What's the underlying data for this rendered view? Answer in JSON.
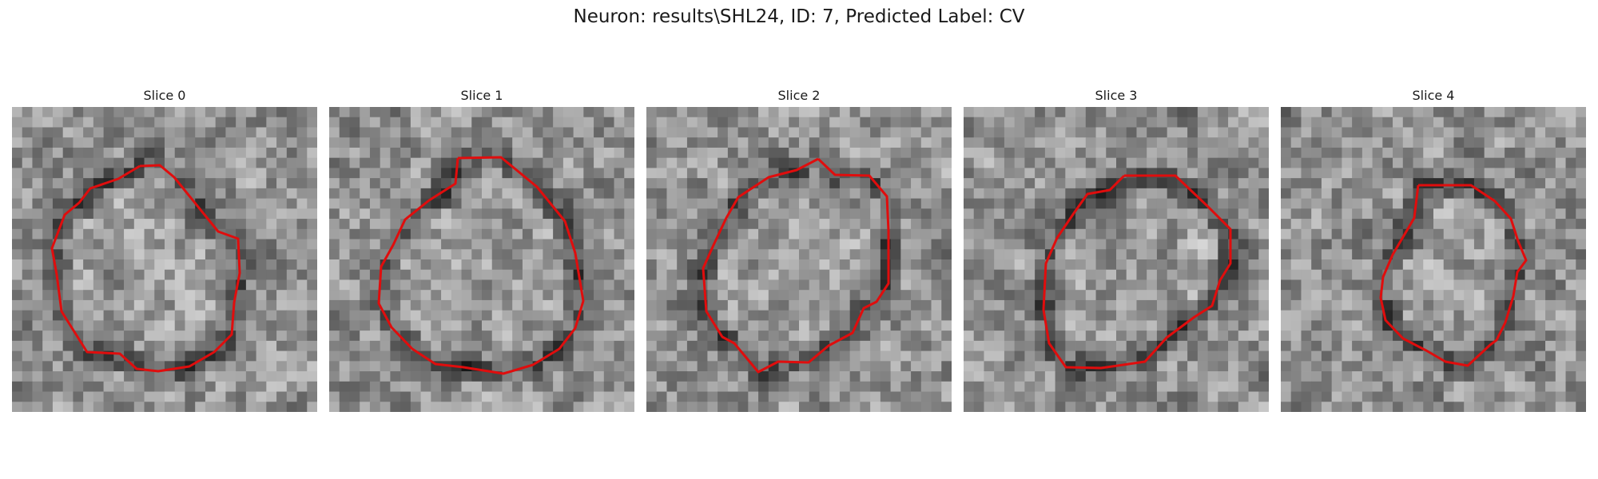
{
  "figure": {
    "title": "Neuron: results\\SHL24, ID: 7, Predicted Label: CV"
  },
  "panels": [
    {
      "title": "Slice 0"
    },
    {
      "title": "Slice 1"
    },
    {
      "title": "Slice 2"
    },
    {
      "title": "Slice 3"
    },
    {
      "title": "Slice 4"
    }
  ],
  "colors": {
    "contour": "#e00d0d",
    "colormap": "grayscale"
  }
}
